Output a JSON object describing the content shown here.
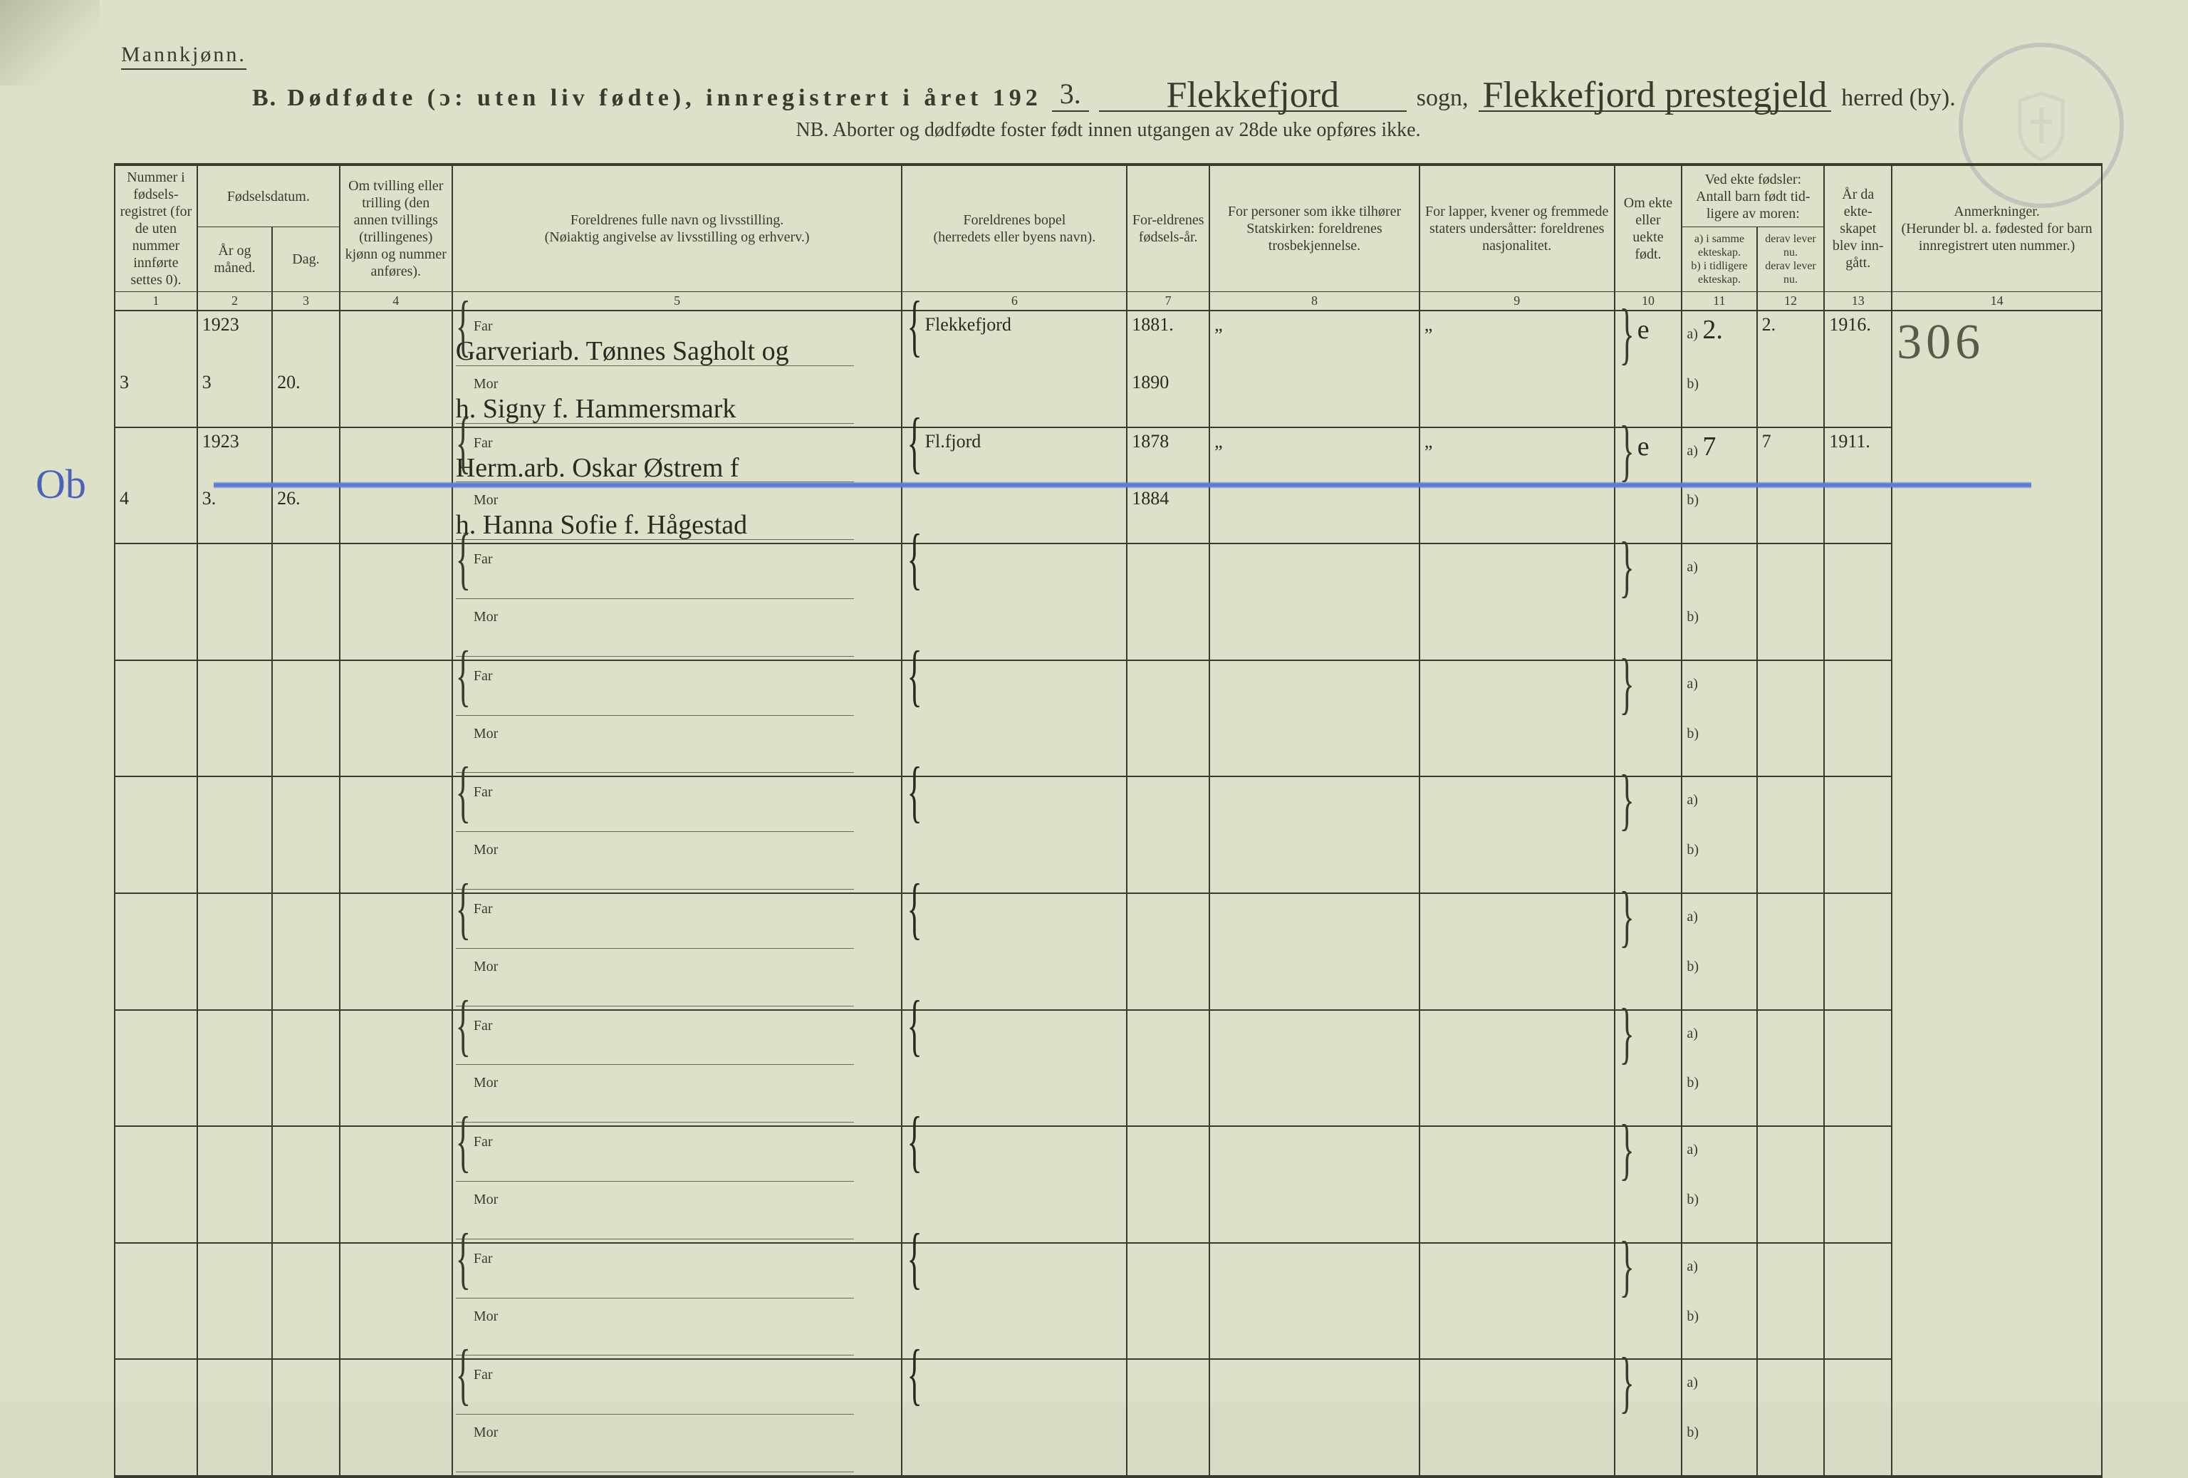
{
  "header": {
    "gender_label": "Mannkjønn.",
    "section_letter": "B.",
    "title_main": "Dødfødte (ɔ: uten liv fødte), innregistrert i året 192",
    "year_suffix_handwritten": "3.",
    "sogn_hand": "Flekkefjord",
    "sogn_label": "sogn,",
    "herred_hand": "Flekkefjord prestegjeld",
    "herred_label": "herred (by).",
    "nb_line": "NB.  Aborter og dødfødte foster født innen utgangen av 28de uke opføres ikke."
  },
  "columns": {
    "c1": "Nummer i fødsels-registret (for de uten nummer innførte settes 0).",
    "c2_group": "Fødselsdatum.",
    "c2": "År og måned.",
    "c3": "Dag.",
    "c4": "Om tvilling eller trilling (den annen tvillings (trillingenes) kjønn og nummer anføres).",
    "c5": "Foreldrenes fulle navn og livsstilling.\n(Nøiaktig angivelse av livsstilling og erhverv.)",
    "c6": "Foreldrenes bopel\n(herredets eller byens navn).",
    "c7": "For-eldrenes fødsels-år.",
    "c8": "For personer som ikke tilhører Statskirken: foreldrenes trosbekjennelse.",
    "c9": "For lapper, kvener og fremmede staters undersåtter: foreldrenes nasjonalitet.",
    "c10": "Om ekte eller uekte født.",
    "c11_group": "Ved ekte fødsler:\nAntall barn født tid-ligere av moren:",
    "c11": "a) i samme ekteskap.\nb) i tidligere ekteskap.",
    "c12": "derav lever nu.\nderav lever nu.",
    "c13": "År da ekte-skapet blev inn-gått.",
    "c14": "Anmerkninger.\n(Herunder bl. a. fødested for barn innregistrert uten nummer.)",
    "nums": [
      "1",
      "2",
      "3",
      "4",
      "5",
      "6",
      "7",
      "8",
      "9",
      "10",
      "11",
      "12",
      "13",
      "14"
    ]
  },
  "labels": {
    "far": "Far",
    "mor": "Mor",
    "a": "a)",
    "b": "b)"
  },
  "records": [
    {
      "num": "3",
      "year": "1923",
      "month": "3",
      "day": "20.",
      "far_name": "Garveriarb. Tønnes Sagholt og",
      "mor_name": "h. Signy f. Hammersmark",
      "bopel": "Flekkefjord",
      "far_year": "1881.",
      "mor_year": "1890",
      "c8": "„",
      "c9": "„",
      "ekte": "e",
      "a_val": "2.",
      "a_lever": "2.",
      "year_married": "1916.",
      "anm": "306",
      "struck": false
    },
    {
      "num": "4",
      "year": "1923",
      "month": "3.",
      "day": "26.",
      "far_name": "Herm.arb. Oskar Østrem f",
      "mor_name": "h. Hanna Sofie f. Hågestad",
      "bopel": "Fl.fjord",
      "far_year": "1878",
      "mor_year": "1884",
      "c8": "„",
      "c9": "„",
      "ekte": "e",
      "a_val": "7",
      "a_lever": "7",
      "year_married": "1911.",
      "anm": "",
      "struck": true,
      "margin_note": "Ob"
    }
  ],
  "style": {
    "paper_bg": "#dde1c9",
    "ink": "#3a3a2e",
    "blue_ink": "#5b7bd4",
    "stamp_tint": "rgba(140,120,160,0.35)"
  }
}
